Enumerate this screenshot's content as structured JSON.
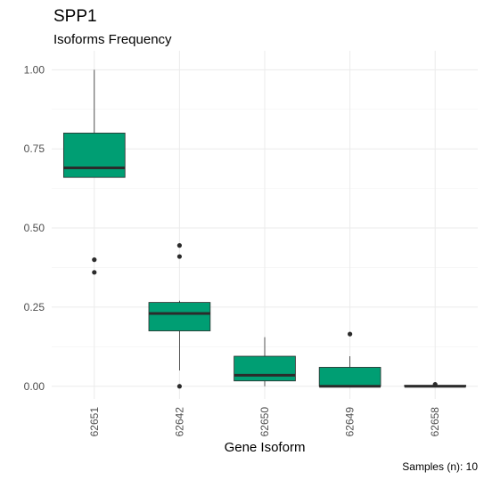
{
  "chart_data": {
    "type": "boxplot",
    "title": "SPP1",
    "subtitle": "Isoforms Frequency",
    "xlabel": "Gene Isoform",
    "ylabel": "",
    "caption": "Samples (n): 10",
    "ylim": [
      -0.04,
      1.06
    ],
    "yticks": [
      0.0,
      0.25,
      0.5,
      0.75,
      1.0
    ],
    "ytick_labels": [
      "0.00",
      "0.25",
      "0.50",
      "0.75",
      "1.00"
    ],
    "grid": true,
    "legend": "none",
    "box_fill": "#009E73",
    "box_outline": "#2b2b2b",
    "categories": [
      "62651",
      "62642",
      "62650",
      "62649",
      "62658"
    ],
    "boxes": [
      {
        "category": "62651",
        "min": 0.66,
        "q1": 0.66,
        "median": 0.69,
        "q3": 0.8,
        "max": 1.0,
        "outliers": [
          0.4,
          0.36
        ]
      },
      {
        "category": "62642",
        "min": 0.05,
        "q1": 0.175,
        "median": 0.23,
        "q3": 0.265,
        "max": 0.27,
        "outliers": [
          0.445,
          0.41,
          0.0
        ]
      },
      {
        "category": "62650",
        "min": 0.0,
        "q1": 0.017,
        "median": 0.035,
        "q3": 0.095,
        "max": 0.155,
        "outliers": []
      },
      {
        "category": "62649",
        "min": 0.0,
        "q1": 0.0,
        "median": 0.0,
        "q3": 0.06,
        "max": 0.095,
        "outliers": [
          0.165
        ]
      },
      {
        "category": "62658",
        "min": 0.0,
        "q1": 0.0,
        "median": 0.0,
        "q3": 0.003,
        "max": 0.003,
        "outliers": [
          0.006
        ]
      }
    ]
  }
}
